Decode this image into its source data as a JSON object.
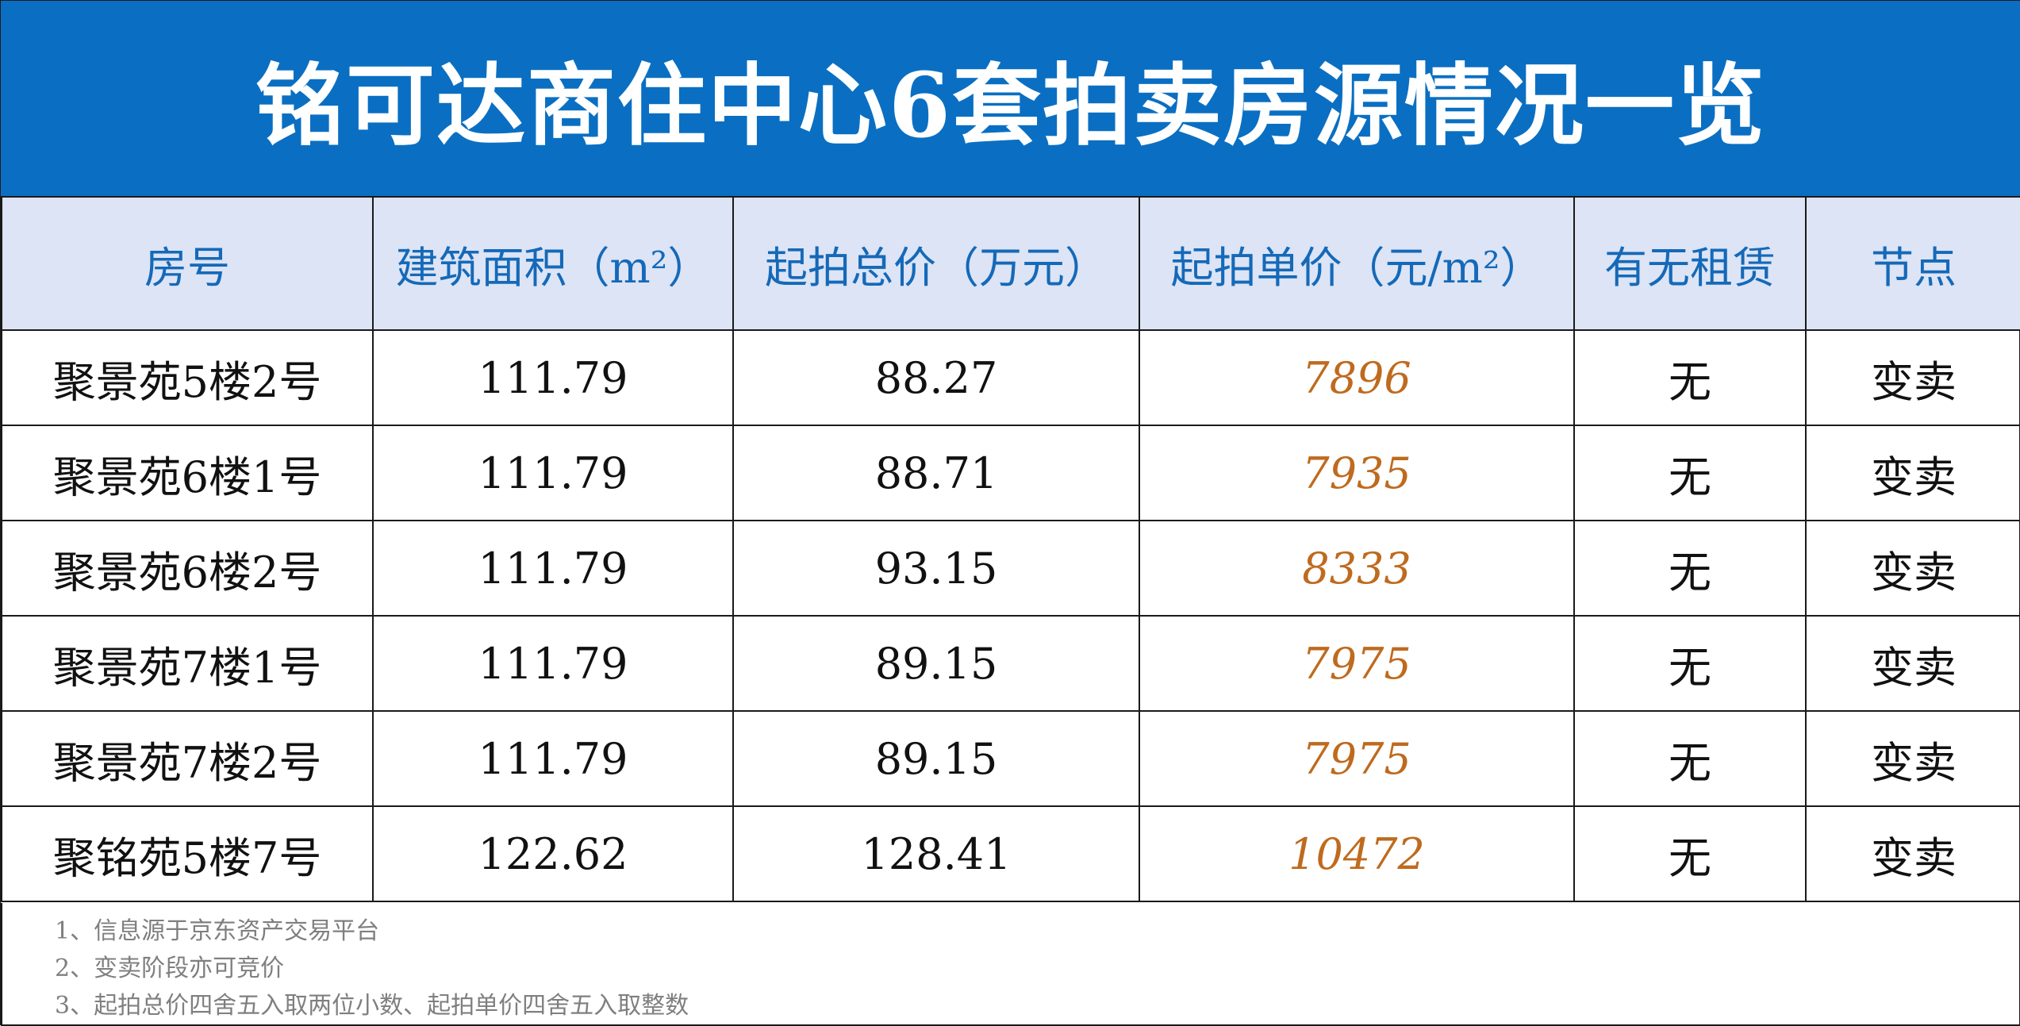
{
  "title": "铭可达商住中心6套拍卖房源情况一览",
  "columns": [
    "房号",
    "建筑面积（m²）",
    "起拍总价（万元）",
    "起拍单价（元/m²）",
    "有无租赁",
    "节点"
  ],
  "rows": [
    [
      "聚景苑5楼2号",
      "111.79",
      "88.27",
      "7896",
      "无",
      "变卖"
    ],
    [
      "聚景苑6楼1号",
      "111.79",
      "88.71",
      "7935",
      "无",
      "变卖"
    ],
    [
      "聚景苑6楼2号",
      "111.79",
      "93.15",
      "8333",
      "无",
      "变卖"
    ],
    [
      "聚景苑7楼1号",
      "111.79",
      "89.15",
      "7975",
      "无",
      "变卖"
    ],
    [
      "聚景苑7楼2号",
      "111.79",
      "89.15",
      "7975",
      "无",
      "变卖"
    ],
    [
      "聚铭苑5楼7号",
      "122.62",
      "128.41",
      "10472",
      "无",
      "变卖"
    ]
  ],
  "notes": [
    "1、信息源于京东资产交易平台",
    "2、变卖阶段亦可竞价",
    "3、起拍总价四舍五入取两位小数、起拍单价四舍五入取整数"
  ],
  "colors": {
    "title_bg": "#0a6fc2",
    "header_bg": "#dce4f5",
    "header_text": "#1569b8",
    "unit_price_text": "#bf6a1e",
    "note_text": "#7f7f7f"
  }
}
